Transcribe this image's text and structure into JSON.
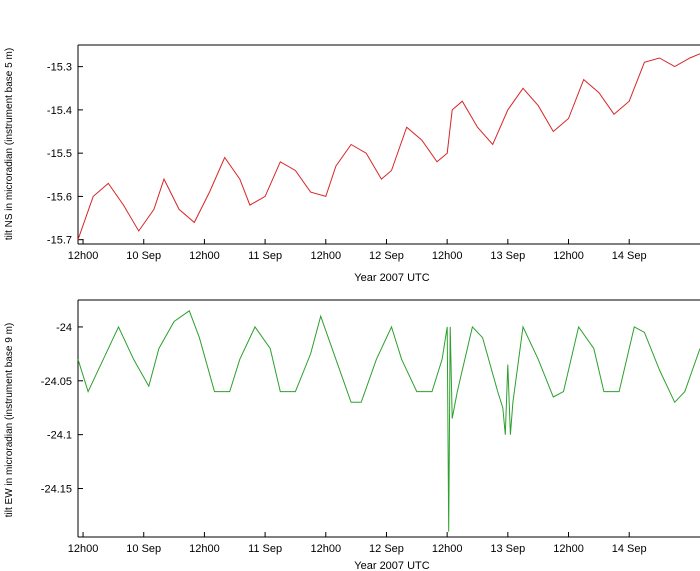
{
  "chart_data": [
    {
      "type": "line",
      "title": "",
      "xlabel": "Year 2007 UTC",
      "ylabel": "tilt NS in microradian (instrument base 5 m)",
      "color": "#d62728",
      "x_unit": "hours since 9 Sep 2007 00:00 UTC",
      "xlim": [
        11,
        134
      ],
      "ylim": [
        -15.71,
        -15.25
      ],
      "x_ticks": [
        {
          "x": 12,
          "label": "12h00"
        },
        {
          "x": 24,
          "label": "10 Sep"
        },
        {
          "x": 36,
          "label": "12h00"
        },
        {
          "x": 48,
          "label": "11 Sep"
        },
        {
          "x": 60,
          "label": "12h00"
        },
        {
          "x": 72,
          "label": "12 Sep"
        },
        {
          "x": 84,
          "label": "12h00"
        },
        {
          "x": 96,
          "label": "13 Sep"
        },
        {
          "x": 108,
          "label": "12h00"
        },
        {
          "x": 120,
          "label": "14 Sep"
        }
      ],
      "y_ticks": [
        {
          "y": -15.3,
          "label": "-15.3"
        },
        {
          "y": -15.4,
          "label": "-15.4"
        },
        {
          "y": -15.5,
          "label": "-15.5"
        },
        {
          "y": -15.6,
          "label": "-15.6"
        },
        {
          "y": -15.7,
          "label": "-15.7"
        }
      ],
      "series": [
        {
          "x": [
            11,
            14,
            17,
            20,
            23,
            26,
            28,
            31,
            34,
            37,
            40,
            43,
            45,
            48,
            51,
            54,
            57,
            60,
            62,
            65,
            68,
            71,
            73,
            76,
            79,
            82,
            84,
            85,
            87,
            90,
            93,
            96,
            99,
            102,
            105,
            108,
            111,
            114,
            117,
            120,
            123,
            126,
            129,
            132,
            134
          ],
          "y": [
            -15.7,
            -15.6,
            -15.57,
            -15.62,
            -15.68,
            -15.63,
            -15.56,
            -15.63,
            -15.66,
            -15.59,
            -15.51,
            -15.56,
            -15.62,
            -15.6,
            -15.52,
            -15.54,
            -15.59,
            -15.6,
            -15.53,
            -15.48,
            -15.5,
            -15.56,
            -15.54,
            -15.44,
            -15.47,
            -15.52,
            -15.5,
            -15.4,
            -15.38,
            -15.44,
            -15.48,
            -15.4,
            -15.35,
            -15.39,
            -15.45,
            -15.42,
            -15.33,
            -15.36,
            -15.41,
            -15.38,
            -15.29,
            -15.28,
            -15.3,
            -15.28,
            -15.27
          ]
        }
      ]
    },
    {
      "type": "line",
      "title": "",
      "xlabel": "Year 2007 UTC",
      "ylabel": "tilt EW in microradian (instrument base 9 m)",
      "color": "#2ca02c",
      "x_unit": "hours since 9 Sep 2007 00:00 UTC",
      "xlim": [
        11,
        134
      ],
      "ylim": [
        -24.195,
        -23.975
      ],
      "x_ticks": [
        {
          "x": 12,
          "label": "12h00"
        },
        {
          "x": 24,
          "label": "10 Sep"
        },
        {
          "x": 36,
          "label": "12h00"
        },
        {
          "x": 48,
          "label": "11 Sep"
        },
        {
          "x": 60,
          "label": "12h00"
        },
        {
          "x": 72,
          "label": "12 Sep"
        },
        {
          "x": 84,
          "label": "12h00"
        },
        {
          "x": 96,
          "label": "13 Sep"
        },
        {
          "x": 108,
          "label": "12h00"
        },
        {
          "x": 120,
          "label": "14 Sep"
        }
      ],
      "y_ticks": [
        {
          "y": -24,
          "label": "-24"
        },
        {
          "y": -24.05,
          "label": "-24.05"
        },
        {
          "y": -24.1,
          "label": "-24.1"
        },
        {
          "y": -24.15,
          "label": "-24.15"
        }
      ],
      "series": [
        {
          "x": [
            11,
            13,
            16,
            19,
            22,
            25,
            27,
            30,
            33,
            35,
            38,
            41,
            43,
            46,
            49,
            51,
            54,
            57,
            59,
            62,
            65,
            67,
            70,
            73,
            75,
            78,
            81,
            83,
            84,
            84.3,
            84.6,
            85,
            86,
            89,
            91,
            94,
            95,
            95.5,
            96,
            96.5,
            97,
            99,
            102,
            105,
            107,
            110,
            113,
            115,
            118,
            121,
            123,
            126,
            129,
            131,
            134
          ],
          "y": [
            -24.03,
            -24.06,
            -24.03,
            -24.0,
            -24.03,
            -24.055,
            -24.02,
            -23.995,
            -23.985,
            -24.01,
            -24.06,
            -24.06,
            -24.03,
            -24.0,
            -24.02,
            -24.06,
            -24.06,
            -24.025,
            -23.99,
            -24.03,
            -24.07,
            -24.07,
            -24.03,
            -24.0,
            -24.03,
            -24.06,
            -24.06,
            -24.03,
            -24.0,
            -24.19,
            -24.0,
            -24.085,
            -24.06,
            -24.0,
            -24.01,
            -24.06,
            -24.075,
            -24.1,
            -24.035,
            -24.1,
            -24.07,
            -24.0,
            -24.03,
            -24.065,
            -24.06,
            -24.0,
            -24.02,
            -24.06,
            -24.06,
            -24.0,
            -24.005,
            -24.04,
            -24.07,
            -24.06,
            -24.02
          ]
        }
      ]
    }
  ]
}
